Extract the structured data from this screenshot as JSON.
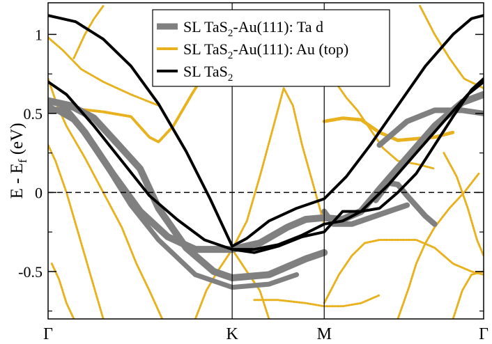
{
  "chart_data": {
    "type": "line",
    "title": "",
    "xlabel": "",
    "ylabel_main": "E - E",
    "ylabel_sub": "f",
    "ylabel_unit": " (eV)",
    "ylim": [
      -0.8,
      1.2
    ],
    "grid": false,
    "legend_position": "top-center",
    "x_ticks": [
      {
        "label": "Γ",
        "x": 0
      },
      {
        "label": "K",
        "x": 1
      },
      {
        "label": "M",
        "x": 1.5
      },
      {
        "label": "Γ",
        "x": 2.366
      }
    ],
    "y_ticks": [
      {
        "label": "-0.5",
        "y": -0.5
      },
      {
        "label": "0",
        "y": 0
      },
      {
        "label": "0.5",
        "y": 0.5
      },
      {
        "label": "1",
        "y": 1.0
      }
    ],
    "fermi_level": 0,
    "legend": [
      {
        "pre": "SL TaS",
        "sub": "2",
        "post": "-Au(111): Ta d",
        "color": "#808080",
        "width": 9
      },
      {
        "pre": "SL TaS",
        "sub": "2",
        "post": "-Au(111): Au (top)",
        "color": "#e8b21f",
        "width": 4
      },
      {
        "pre": "SL TaS",
        "sub": "2",
        "post": "",
        "color": "#000000",
        "width": 4
      }
    ],
    "series": [
      {
        "name": "SL TaS2",
        "color": "#000000",
        "style": "solid",
        "width": 4,
        "points": [
          [
            0,
            1.12
          ],
          [
            0.15,
            1.08
          ],
          [
            0.3,
            0.97
          ],
          [
            0.45,
            0.8
          ],
          [
            0.6,
            0.56
          ],
          [
            0.75,
            0.26
          ],
          [
            0.88,
            -0.04
          ],
          [
            1.0,
            -0.34
          ],
          [
            1.08,
            -0.29
          ],
          [
            1.2,
            -0.18
          ],
          [
            1.35,
            -0.1
          ],
          [
            1.5,
            -0.04
          ],
          [
            1.62,
            0.1
          ],
          [
            1.75,
            0.3
          ],
          [
            1.9,
            0.55
          ],
          [
            2.05,
            0.8
          ],
          [
            2.2,
            1.0
          ],
          [
            2.3,
            1.1
          ],
          [
            2.366,
            1.12
          ]
        ]
      },
      {
        "name": "SL TaS2",
        "color": "#000000",
        "style": "solid",
        "width": 4,
        "points": [
          [
            0,
            0.7
          ],
          [
            0.1,
            0.62
          ],
          [
            0.25,
            0.42
          ],
          [
            0.4,
            0.2
          ],
          [
            0.55,
            -0.02
          ],
          [
            0.7,
            -0.17
          ],
          [
            0.85,
            -0.3
          ],
          [
            1.0,
            -0.36
          ],
          [
            1.12,
            -0.36
          ],
          [
            1.25,
            -0.33
          ],
          [
            1.38,
            -0.27
          ],
          [
            1.5,
            -0.2
          ],
          [
            1.6,
            -0.18
          ],
          [
            1.7,
            -0.12
          ],
          [
            1.85,
            0.05
          ],
          [
            2.0,
            0.25
          ],
          [
            2.15,
            0.45
          ],
          [
            2.28,
            0.62
          ],
          [
            2.366,
            0.7
          ]
        ]
      },
      {
        "name": "SL TaS2",
        "color": "#000000",
        "style": "solid",
        "width": 4,
        "points": [
          [
            1.0,
            -0.36
          ],
          [
            1.12,
            -0.38
          ],
          [
            1.25,
            -0.34
          ],
          [
            1.38,
            -0.28
          ],
          [
            1.5,
            -0.25
          ],
          [
            1.6,
            -0.12
          ],
          [
            1.7,
            -0.12
          ],
          [
            1.8,
            -0.1
          ],
          [
            1.9,
            0.0
          ],
          [
            2.0,
            0.12
          ],
          [
            2.1,
            0.3
          ],
          [
            2.2,
            0.48
          ],
          [
            2.3,
            0.65
          ],
          [
            2.366,
            0.72
          ]
        ]
      },
      {
        "name": "Ta d",
        "color": "#808080",
        "style": "solid",
        "width": 10,
        "points": [
          [
            0,
            0.52
          ],
          [
            0.1,
            0.52
          ],
          [
            0.2,
            0.38
          ],
          [
            0.35,
            0.12
          ],
          [
            0.5,
            -0.12
          ],
          [
            0.65,
            -0.28
          ],
          [
            0.8,
            -0.36
          ],
          [
            1.0,
            -0.36
          ],
          [
            1.15,
            -0.32
          ],
          [
            1.3,
            -0.22
          ],
          [
            1.4,
            -0.17
          ],
          [
            1.5,
            -0.16
          ],
          [
            1.6,
            -0.17
          ],
          [
            1.7,
            -0.12
          ],
          [
            1.8,
            0.02
          ],
          [
            1.95,
            0.22
          ],
          [
            2.1,
            0.42
          ],
          [
            2.25,
            0.57
          ],
          [
            2.366,
            0.62
          ]
        ]
      },
      {
        "name": "Ta d",
        "color": "#808080",
        "style": "solid",
        "width": 10,
        "points": [
          [
            0,
            0.58
          ],
          [
            0.12,
            0.55
          ],
          [
            0.25,
            0.47
          ],
          [
            0.36,
            0.33
          ],
          [
            0.5,
            0.15
          ],
          [
            0.6,
            -0.1
          ],
          [
            0.75,
            -0.35
          ],
          [
            0.9,
            -0.5
          ],
          [
            1.0,
            -0.54
          ],
          [
            1.2,
            -0.52
          ],
          [
            1.4,
            -0.42
          ],
          [
            1.5,
            -0.38
          ]
        ]
      },
      {
        "name": "Ta d",
        "color": "#808080",
        "style": "solid",
        "width": 7,
        "points": [
          [
            0,
            0.55
          ],
          [
            0.15,
            0.45
          ],
          [
            0.3,
            0.2
          ],
          [
            0.45,
            -0.08
          ],
          [
            0.6,
            -0.3
          ],
          [
            0.8,
            -0.52
          ],
          [
            1.0,
            -0.6
          ],
          [
            1.2,
            -0.58
          ],
          [
            1.35,
            -0.52
          ]
        ]
      },
      {
        "name": "Ta d",
        "color": "#808080",
        "style": "solid",
        "width": 8,
        "points": [
          [
            1.5,
            -0.12
          ],
          [
            1.55,
            -0.2
          ],
          [
            1.65,
            -0.2
          ],
          [
            1.75,
            -0.16
          ],
          [
            1.85,
            -0.12
          ],
          [
            1.95,
            -0.08
          ]
        ]
      },
      {
        "name": "Ta d",
        "color": "#808080",
        "style": "solid",
        "width": 8,
        "points": [
          [
            1.78,
            -0.05
          ],
          [
            1.85,
            0.06
          ],
          [
            1.9,
            0.05
          ],
          [
            1.95,
            -0.02
          ],
          [
            2.05,
            -0.15
          ],
          [
            2.1,
            -0.2
          ]
        ]
      },
      {
        "name": "Ta d",
        "color": "#808080",
        "style": "solid",
        "width": 8,
        "points": [
          [
            1.8,
            0.3
          ],
          [
            1.95,
            0.45
          ],
          [
            2.1,
            0.52
          ],
          [
            2.25,
            0.52
          ],
          [
            2.366,
            0.5
          ]
        ]
      },
      {
        "name": "Au (top)",
        "color": "#e8b21f",
        "style": "solid",
        "width": 4,
        "points": [
          [
            0,
            0.53
          ],
          [
            0.15,
            0.53
          ],
          [
            0.3,
            0.51
          ],
          [
            0.45,
            0.48
          ],
          [
            0.55,
            0.35
          ],
          [
            0.6,
            0.32
          ],
          [
            0.68,
            0.42
          ],
          [
            0.78,
            0.62
          ],
          [
            0.85,
            0.75
          ],
          [
            0.95,
            0.95
          ],
          [
            1.05,
            1.15
          ]
        ]
      },
      {
        "name": "Au (top)",
        "color": "#e8b21f",
        "style": "solid",
        "width": 3,
        "points": [
          [
            0,
            0.98
          ],
          [
            0.08,
            0.9
          ],
          [
            0.18,
            0.78
          ],
          [
            0.3,
            0.7
          ],
          [
            0.45,
            0.62
          ],
          [
            0.6,
            0.55
          ]
        ]
      },
      {
        "name": "Au (top)",
        "color": "#e8b21f",
        "style": "solid",
        "width": 3,
        "points": [
          [
            0,
            0.72
          ],
          [
            0.05,
            0.55
          ],
          [
            0.1,
            0.42
          ],
          [
            0.2,
            0.22
          ],
          [
            0.3,
            0.0
          ],
          [
            0.4,
            -0.22
          ],
          [
            0.48,
            -0.45
          ],
          [
            0.55,
            -0.62
          ],
          [
            0.62,
            -0.8
          ]
        ]
      },
      {
        "name": "Au (top)",
        "color": "#e8b21f",
        "style": "solid",
        "width": 3,
        "points": [
          [
            0.02,
            -0.45
          ],
          [
            0.06,
            -0.55
          ],
          [
            0.1,
            -0.7
          ],
          [
            0.14,
            -0.8
          ]
        ]
      },
      {
        "name": "Au (top)",
        "color": "#e8b21f",
        "style": "solid",
        "width": 3,
        "points": [
          [
            0,
            0.3
          ],
          [
            0.04,
            0.2
          ],
          [
            0.1,
            0.0
          ],
          [
            0.15,
            -0.2
          ],
          [
            0.2,
            -0.4
          ],
          [
            0.25,
            -0.6
          ],
          [
            0.3,
            -0.8
          ]
        ]
      },
      {
        "name": "Au (top)",
        "color": "#e8b21f",
        "style": "solid",
        "width": 3,
        "points": [
          [
            0.14,
            0.85
          ],
          [
            0.2,
            1.0
          ],
          [
            0.25,
            1.1
          ],
          [
            0.3,
            1.18
          ]
        ]
      },
      {
        "name": "Au (top)",
        "color": "#e8b21f",
        "style": "solid",
        "width": 3,
        "points": [
          [
            1.0,
            -0.36
          ],
          [
            1.08,
            -0.18
          ],
          [
            1.15,
            0.1
          ],
          [
            1.22,
            0.4
          ],
          [
            1.28,
            0.66
          ],
          [
            1.33,
            0.55
          ],
          [
            1.38,
            0.3
          ],
          [
            1.44,
            0.05
          ],
          [
            1.5,
            -0.2
          ]
        ]
      },
      {
        "name": "Au (top)",
        "color": "#e8b21f",
        "style": "solid",
        "width": 3,
        "points": [
          [
            1.0,
            -0.36
          ],
          [
            1.08,
            -0.5
          ],
          [
            1.15,
            -0.62
          ],
          [
            1.2,
            -0.8
          ]
        ]
      },
      {
        "name": "Au (top)",
        "color": "#e8b21f",
        "style": "solid",
        "width": 3,
        "points": [
          [
            1.0,
            -0.36
          ],
          [
            0.92,
            -0.5
          ],
          [
            0.86,
            -0.62
          ],
          [
            0.8,
            -0.8
          ]
        ]
      },
      {
        "name": "Au (top)",
        "color": "#e8b21f",
        "style": "solid",
        "width": 3,
        "points": [
          [
            1.12,
            -0.68
          ],
          [
            1.25,
            -0.68
          ],
          [
            1.4,
            -0.7
          ],
          [
            1.5,
            -0.72
          ],
          [
            1.6,
            -0.72
          ],
          [
            1.7,
            -0.7
          ],
          [
            1.8,
            -0.65
          ]
        ]
      },
      {
        "name": "Au (top)",
        "color": "#e8b21f",
        "style": "solid",
        "width": 3,
        "points": [
          [
            1.5,
            0.92
          ],
          [
            1.56,
            0.7
          ],
          [
            1.62,
            0.6
          ],
          [
            1.68,
            0.52
          ],
          [
            1.75,
            0.4
          ],
          [
            1.82,
            0.28
          ],
          [
            1.9,
            0.2
          ],
          [
            2.0,
            0.18
          ],
          [
            2.1,
            0.15
          ]
        ]
      },
      {
        "name": "Au (top)",
        "color": "#e8b21f",
        "style": "solid",
        "width": 5,
        "points": [
          [
            1.5,
            0.45
          ],
          [
            1.6,
            0.47
          ],
          [
            1.7,
            0.46
          ],
          [
            1.8,
            0.38
          ],
          [
            1.9,
            0.33
          ],
          [
            2.0,
            0.34
          ],
          [
            2.1,
            0.35
          ],
          [
            2.2,
            0.38
          ]
        ]
      },
      {
        "name": "Au (top)",
        "color": "#e8b21f",
        "style": "solid",
        "width": 3,
        "points": [
          [
            1.5,
            -0.7
          ],
          [
            1.58,
            -0.52
          ],
          [
            1.65,
            -0.4
          ],
          [
            1.72,
            -0.32
          ],
          [
            1.8,
            -0.3
          ],
          [
            1.9,
            -0.3
          ],
          [
            2.0,
            -0.3
          ],
          [
            2.1,
            -0.35
          ],
          [
            2.2,
            -0.45
          ],
          [
            2.3,
            -0.5
          ],
          [
            2.366,
            -0.52
          ]
        ]
      },
      {
        "name": "Au (top)",
        "color": "#e8b21f",
        "style": "solid",
        "width": 3,
        "points": [
          [
            1.9,
            -0.8
          ],
          [
            1.96,
            -0.6
          ],
          [
            2.0,
            -0.45
          ],
          [
            2.05,
            -0.32
          ],
          [
            2.1,
            -0.22
          ],
          [
            2.18,
            -0.1
          ],
          [
            2.26,
            0.0
          ],
          [
            2.34,
            0.12
          ]
        ]
      },
      {
        "name": "Au (top)",
        "color": "#e8b21f",
        "style": "solid",
        "width": 3,
        "points": [
          [
            2.02,
            1.18
          ],
          [
            2.1,
            1.0
          ],
          [
            2.18,
            0.85
          ],
          [
            2.26,
            0.72
          ],
          [
            2.366,
            0.66
          ]
        ]
      },
      {
        "name": "Au (top)",
        "color": "#e8b21f",
        "style": "solid",
        "width": 3,
        "points": [
          [
            2.2,
            -0.8
          ],
          [
            2.25,
            -0.62
          ],
          [
            2.3,
            -0.52
          ],
          [
            2.366,
            -0.5
          ]
        ]
      },
      {
        "name": "Au (top)",
        "color": "#e8b21f",
        "style": "solid",
        "width": 3,
        "points": [
          [
            2.15,
            0.25
          ],
          [
            2.22,
            0.1
          ],
          [
            2.28,
            -0.1
          ],
          [
            2.33,
            -0.3
          ],
          [
            2.366,
            -0.4
          ]
        ]
      }
    ]
  }
}
